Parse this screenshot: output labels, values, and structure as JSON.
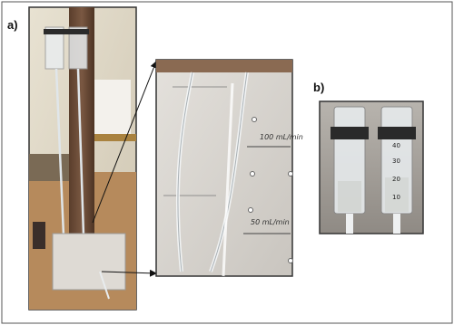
{
  "figure": {
    "panel_a_label": "a)",
    "panel_b_label": "b)",
    "flow_labels": [
      "100 mL/min",
      "50 mL/min"
    ],
    "syringe_graduations": [
      "10",
      "20",
      "30",
      "40"
    ]
  }
}
